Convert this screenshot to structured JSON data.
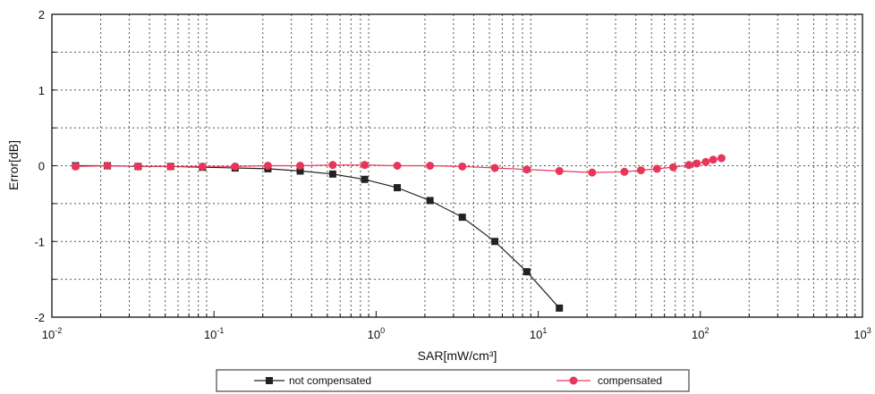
{
  "chart_data": {
    "type": "line",
    "xlabel": "SAR[mW/cm³]",
    "ylabel": "Error[dB]",
    "x_scale": "log",
    "xlim": [
      0.01,
      1000
    ],
    "ylim": [
      -2,
      2
    ],
    "x_ticks": [
      {
        "base": "10",
        "exp": "-2",
        "value": 0.01
      },
      {
        "base": "10",
        "exp": "-1",
        "value": 0.1
      },
      {
        "base": "10",
        "exp": "0",
        "value": 1
      },
      {
        "base": "10",
        "exp": "1",
        "value": 10
      },
      {
        "base": "10",
        "exp": "2",
        "value": 100
      },
      {
        "base": "10",
        "exp": "3",
        "value": 1000
      }
    ],
    "y_ticks": [
      {
        "label": "2",
        "value": 2
      },
      {
        "label": "1",
        "value": 1
      },
      {
        "label": "0",
        "value": 0
      },
      {
        "label": "-1",
        "value": -1
      },
      {
        "label": "-2",
        "value": -2
      }
    ],
    "grid": true,
    "legend_position": "bottom-center",
    "series": [
      {
        "name": "not compensated",
        "color": "#222222",
        "marker": "square",
        "x": [
          0.014,
          0.022,
          0.034,
          0.054,
          0.085,
          0.135,
          0.215,
          0.34,
          0.54,
          0.85,
          1.35,
          2.15,
          3.4,
          5.4,
          8.5,
          13.5
        ],
        "y": [
          0.0,
          0.0,
          -0.01,
          -0.01,
          -0.02,
          -0.03,
          -0.04,
          -0.07,
          -0.11,
          -0.18,
          -0.29,
          -0.46,
          -0.68,
          -1.0,
          -1.4,
          -1.88
        ]
      },
      {
        "name": "compensated",
        "color": "#e8365a",
        "marker": "circle",
        "x": [
          0.014,
          0.022,
          0.034,
          0.054,
          0.085,
          0.135,
          0.215,
          0.34,
          0.54,
          0.85,
          1.35,
          2.15,
          3.4,
          5.4,
          8.5,
          13.5,
          21.5,
          34,
          43,
          54,
          68,
          85,
          95,
          108,
          120,
          135
        ],
        "y": [
          -0.01,
          0.0,
          -0.01,
          -0.01,
          -0.01,
          -0.01,
          0.0,
          0.0,
          0.01,
          0.01,
          0.0,
          0.0,
          -0.01,
          -0.03,
          -0.05,
          -0.07,
          -0.09,
          -0.08,
          -0.06,
          -0.04,
          -0.02,
          0.01,
          0.03,
          0.05,
          0.08,
          0.1
        ]
      }
    ]
  }
}
